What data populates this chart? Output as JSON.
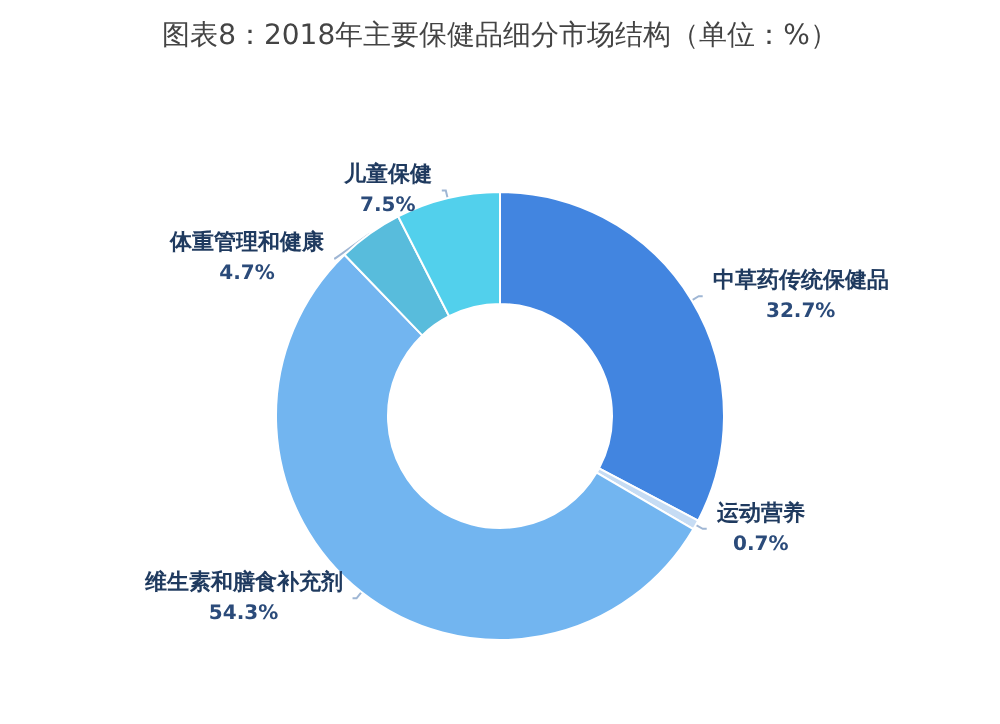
{
  "chart_data": {
    "type": "donut",
    "title": "图表8：2018年主要保健品细分市场结构（单位：%）",
    "categories": [
      "中草药传统保健品",
      "运动营养",
      "维生素和膳食补充剂",
      "体重管理和健康",
      "儿童保健"
    ],
    "values": [
      32.7,
      0.7,
      54.3,
      4.7,
      7.5
    ],
    "colors": [
      "#4285e0",
      "#c6dcf4",
      "#72b5f0",
      "#58bcdc",
      "#52d0ec"
    ],
    "value_labels": [
      "32.7%",
      "0.7%",
      "54.3%",
      "4.7%",
      "7.5%"
    ],
    "legend": false
  }
}
